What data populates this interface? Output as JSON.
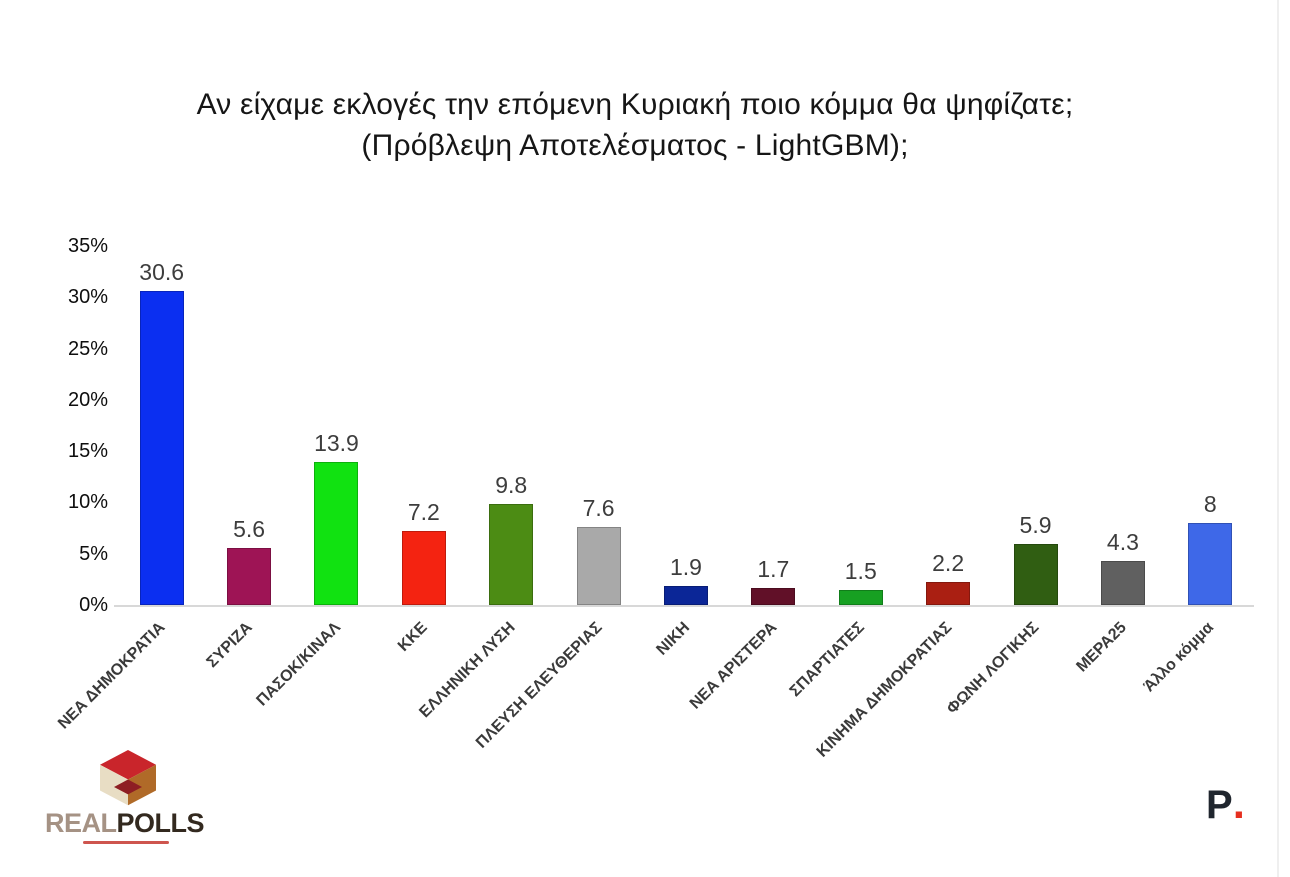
{
  "title": {
    "line1": "Αν είχαμε εκλογές την επόμενη Κυριακή ποιο κόμμα θα ψηφίζατε;",
    "line2": "(Πρόβλεψη Αποτελέσματος - LightGBM);"
  },
  "chart_data": {
    "type": "bar",
    "title": "Αν είχαμε εκλογές την επόμενη Κυριακή ποιο κόμμα θα ψηφίζατε; (Πρόβλεψη Αποτελέσματος - LightGBM);",
    "categories": [
      "ΝΕΑ ΔΗΜΟΚΡΑΤΙΑ",
      "ΣΥΡΙΖΑ",
      "ΠΑΣΟΚ/ΚΙΝΑΛ",
      "ΚΚΕ",
      "ΕΛΛΗΝΙΚΗ ΛΥΣΗ",
      "ΠΛΕΥΣΗ ΕΛΕΥΘΕΡΙΑΣ",
      "ΝΙΚΗ",
      "ΝΕΑ ΑΡΙΣΤΕΡΑ",
      "ΣΠΑΡΤΙΑΤΕΣ",
      "ΚΙΝΗΜΑ ΔΗΜΟΚΡΑΤΙΑΣ",
      "ΦΩΝΗ ΛΟΓΙΚΗΣ",
      "ΜΕΡΑ25",
      "Άλλο κόμμα"
    ],
    "values": [
      30.6,
      5.6,
      13.9,
      7.2,
      9.8,
      7.6,
      1.9,
      1.7,
      1.5,
      2.2,
      5.9,
      4.3,
      8
    ],
    "value_labels": [
      "30.6",
      "5.6",
      "13.9",
      "7.2",
      "9.8",
      "7.6",
      "1.9",
      "1.7",
      "1.5",
      "2.2",
      "5.9",
      "4.3",
      "8"
    ],
    "bar_colors": [
      "#0b2ff1",
      "#9e1455",
      "#11e211",
      "#f42311",
      "#4c8c14",
      "#a9a9a9",
      "#0b2697",
      "#611028",
      "#17a022",
      "#aa1f12",
      "#305e12",
      "#606060",
      "#3e68e8"
    ],
    "xlabel": "",
    "ylabel": "",
    "ylim": [
      0,
      35
    ],
    "yticks": [
      "0%",
      "5%",
      "10%",
      "15%",
      "20%",
      "25%",
      "30%",
      "35%"
    ],
    "ytick_values": [
      0,
      5,
      10,
      15,
      20,
      25,
      30,
      35
    ],
    "grid": false,
    "legend": "none",
    "value_labels_shown": true
  },
  "footer": {
    "brand_left": {
      "part1": "REAL",
      "part2": "POLLS"
    },
    "brand_right": {
      "letter": "P",
      "dot": "."
    }
  },
  "colors": {
    "axis_line": "#d8d8d8",
    "value_label": "#3d3d3d",
    "tick_label": "#0e0e0e",
    "category_label": "#3a3a3a",
    "title_text": "#161616",
    "logo_red": "#c9252b",
    "logo_cream": "#e8ddc4",
    "logo_brown": "#b06a28",
    "logo_dark_red": "#8e1e23",
    "p_logo_dark": "#20262e",
    "p_logo_red": "#e62f1f"
  }
}
